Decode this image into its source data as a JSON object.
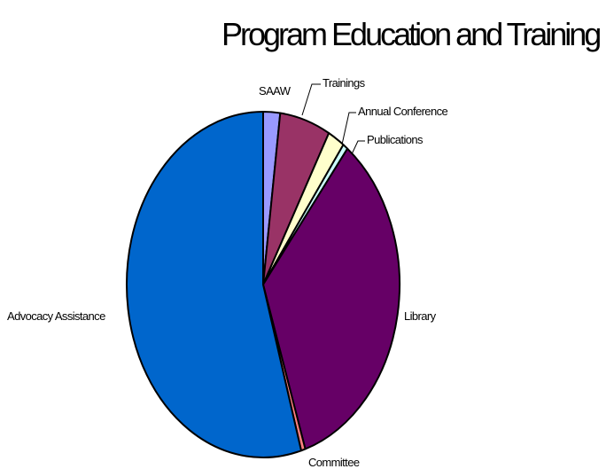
{
  "chart_data": {
    "type": "pie",
    "title": "Program Education and Training",
    "start_angle_deg": 0,
    "direction": "clockwise",
    "slices": [
      {
        "label": "SAAW",
        "value": 2.0,
        "color": "#9999FF"
      },
      {
        "label": "Trainings",
        "value": 6.0,
        "color": "#993366"
      },
      {
        "label": "Annual Conference",
        "value": 2.0,
        "color": "#FFFFCC"
      },
      {
        "label": "Publications",
        "value": 0.6,
        "color": "#CCFFFF"
      },
      {
        "label": "Library",
        "value": 34.4,
        "color": "#660066"
      },
      {
        "label": "Committee",
        "value": 0.5,
        "color": "#FF8080"
      },
      {
        "label": "Advocacy Assistance",
        "value": 54.5,
        "color": "#0066CC"
      }
    ]
  }
}
